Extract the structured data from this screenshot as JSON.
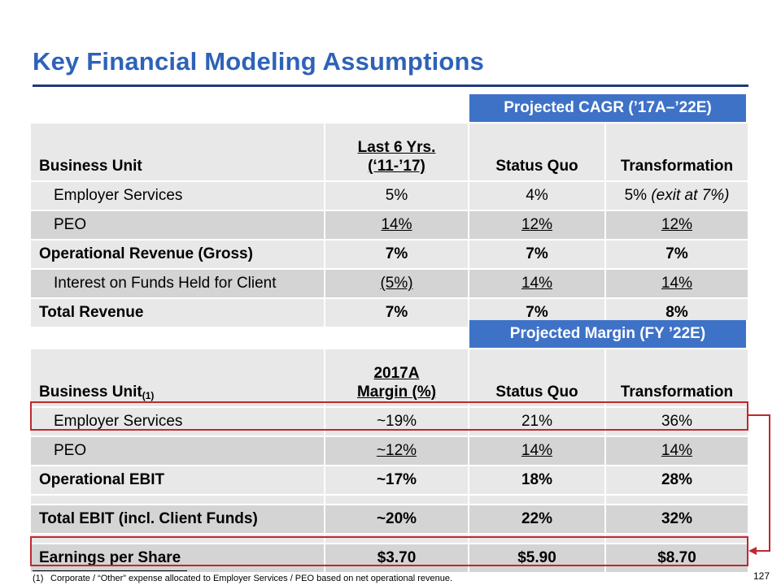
{
  "title": "Key Financial Modeling Assumptions",
  "table1": {
    "band": "Projected CAGR (’17A–’22E)",
    "headers": [
      "Business Unit",
      "Last 6 Yrs.",
      "(‘11-’17)",
      "Status Quo",
      "Transformation"
    ],
    "rows": [
      {
        "label": "Employer Services",
        "v1": "5%",
        "v2": "4%",
        "v3a": "5% ",
        "v3b": "(exit at 7%)"
      },
      {
        "label": "PEO",
        "v1": "14%",
        "v2": "12%",
        "v3": "12%"
      },
      {
        "label": "Operational Revenue (Gross)",
        "v1": "7%",
        "v2": "7%",
        "v3": "7%"
      },
      {
        "label": "Interest on Funds Held for Client",
        "v1": "(5%)",
        "v2": "14%",
        "v3": "14%"
      },
      {
        "label": "Total Revenue",
        "v1": "7%",
        "v2": "7%",
        "v3": "8%"
      }
    ]
  },
  "table2": {
    "band": "Projected Margin (FY ’22E)",
    "headers": [
      "Business Unit",
      "(1)",
      "2017A",
      "Margin (%)",
      "Status Quo",
      "Transformation"
    ],
    "rows": [
      {
        "label": "Employer Services",
        "v1": "~19%",
        "v2": "21%",
        "v3": "36%"
      },
      {
        "label": "PEO",
        "v1": "~12%",
        "v2": "14%",
        "v3": "14%"
      },
      {
        "label": "Operational EBIT",
        "v1": "~17%",
        "v2": "18%",
        "v3": "28%"
      },
      {
        "label": "Total EBIT (incl. Client Funds)",
        "v1": "~20%",
        "v2": "22%",
        "v3": "32%"
      },
      {
        "label": "Earnings per Share",
        "v1": "$3.70",
        "v2": "$5.90",
        "v3": "$8.70"
      }
    ]
  },
  "footnote": {
    "num": "(1)",
    "text": "Corporate / “Other” expense allocated to Employer Services / PEO based on net operational revenue."
  },
  "page_number": "127",
  "colors": {
    "title": "#2e62b8",
    "band": "#3e72c7",
    "highlight": "#c0282f"
  }
}
